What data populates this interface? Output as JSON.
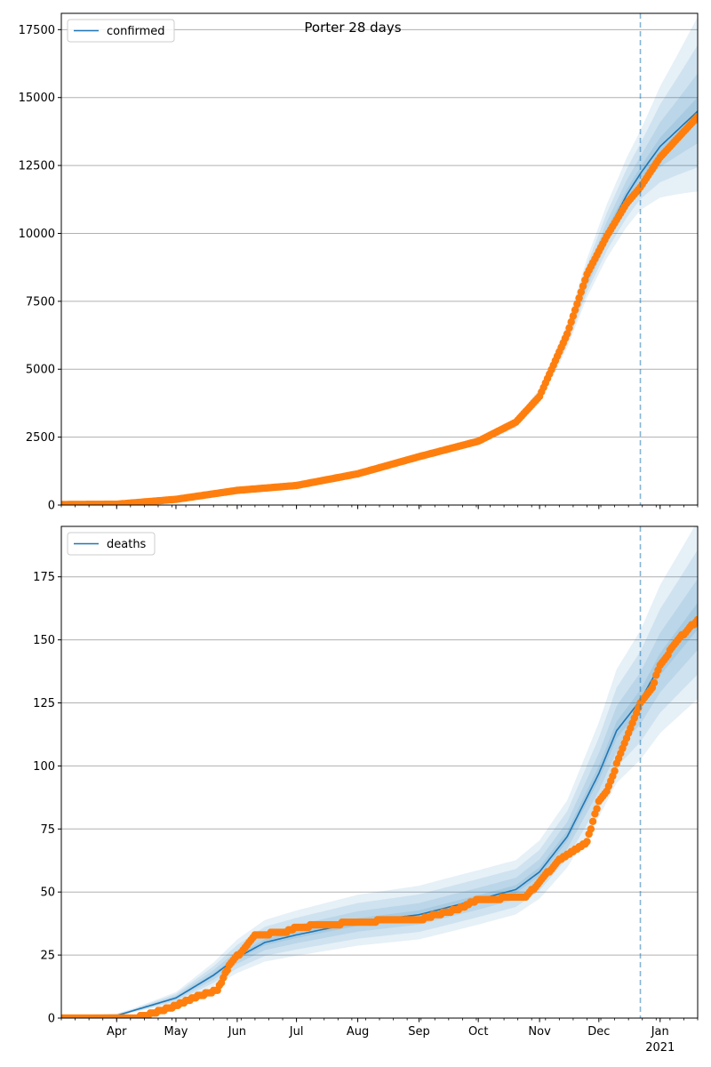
{
  "figure": {
    "title": "Porter 28 days"
  },
  "colors": {
    "model": "#1f77b4",
    "observed": "#ff7f0e",
    "band": "#1f77b4",
    "grid": "#b0b0b0",
    "forecast_line": "#1f77b4"
  },
  "x_axis": {
    "range": [
      "2020-03-04",
      "2021-01-20"
    ],
    "forecast_start": "2020-12-22",
    "month_ticks": [
      {
        "date": "2020-04-01",
        "label": "Apr"
      },
      {
        "date": "2020-05-01",
        "label": "May"
      },
      {
        "date": "2020-06-01",
        "label": "Jun"
      },
      {
        "date": "2020-07-01",
        "label": "Jul"
      },
      {
        "date": "2020-08-01",
        "label": "Aug"
      },
      {
        "date": "2020-09-01",
        "label": "Sep"
      },
      {
        "date": "2020-10-01",
        "label": "Oct"
      },
      {
        "date": "2020-11-01",
        "label": "Nov"
      },
      {
        "date": "2020-12-01",
        "label": "Dec"
      },
      {
        "date": "2021-01-01",
        "label": "Jan"
      }
    ],
    "year_label": "2021"
  },
  "chart_data": [
    {
      "type": "line",
      "legend": "confirmed",
      "legend_position": "upper-left",
      "grid": "horizontal",
      "ylim": [
        0,
        18100
      ],
      "y_ticks": [
        0,
        2500,
        5000,
        7500,
        10000,
        12500,
        15000,
        17500
      ],
      "model_knots": [
        [
          "2020-03-04",
          20
        ],
        [
          "2020-04-01",
          40
        ],
        [
          "2020-05-01",
          200
        ],
        [
          "2020-06-01",
          520
        ],
        [
          "2020-07-01",
          700
        ],
        [
          "2020-08-01",
          1150
        ],
        [
          "2020-09-01",
          1750
        ],
        [
          "2020-10-01",
          2300
        ],
        [
          "2020-10-20",
          3000
        ],
        [
          "2020-11-01",
          4000
        ],
        [
          "2020-11-15",
          6200
        ],
        [
          "2020-11-25",
          8300
        ],
        [
          "2020-12-05",
          10000
        ],
        [
          "2020-12-15",
          11400
        ],
        [
          "2020-12-22",
          12200
        ],
        [
          "2021-01-01",
          13200
        ],
        [
          "2021-01-20",
          14500
        ]
      ],
      "band_spread": [
        [
          "2020-03-04",
          0.06
        ],
        [
          "2020-10-01",
          0.05
        ],
        [
          "2020-11-15",
          0.08
        ],
        [
          "2020-12-22",
          0.13
        ],
        [
          "2021-01-20",
          0.24
        ]
      ],
      "observed_knots": [
        [
          "2020-03-04",
          20
        ],
        [
          "2020-04-01",
          30
        ],
        [
          "2020-05-01",
          210
        ],
        [
          "2020-06-01",
          540
        ],
        [
          "2020-07-01",
          720
        ],
        [
          "2020-08-01",
          1150
        ],
        [
          "2020-09-01",
          1780
        ],
        [
          "2020-10-01",
          2350
        ],
        [
          "2020-10-20",
          3050
        ],
        [
          "2020-11-01",
          4000
        ],
        [
          "2020-11-15",
          6300
        ],
        [
          "2020-11-25",
          8500
        ],
        [
          "2020-12-05",
          9900
        ],
        [
          "2020-12-15",
          11100
        ],
        [
          "2020-12-22",
          11700
        ],
        [
          "2021-01-01",
          12800
        ],
        [
          "2021-01-20",
          14300
        ]
      ]
    },
    {
      "type": "line",
      "legend": "deaths",
      "legend_position": "upper-left",
      "grid": "horizontal",
      "ylim": [
        0,
        195
      ],
      "y_ticks": [
        0,
        25,
        50,
        75,
        100,
        125,
        150,
        175
      ],
      "model_knots": [
        [
          "2020-03-04",
          0
        ],
        [
          "2020-04-01",
          1
        ],
        [
          "2020-05-01",
          8
        ],
        [
          "2020-05-20",
          17
        ],
        [
          "2020-06-01",
          24
        ],
        [
          "2020-06-15",
          30
        ],
        [
          "2020-07-01",
          33
        ],
        [
          "2020-08-01",
          38
        ],
        [
          "2020-09-01",
          41
        ],
        [
          "2020-10-01",
          47
        ],
        [
          "2020-10-20",
          51
        ],
        [
          "2020-11-01",
          58
        ],
        [
          "2020-11-15",
          72
        ],
        [
          "2020-12-01",
          97
        ],
        [
          "2020-12-10",
          114
        ],
        [
          "2020-12-22",
          126
        ],
        [
          "2021-01-01",
          140
        ],
        [
          "2021-01-20",
          159
        ]
      ],
      "band_spread": [
        [
          "2020-03-04",
          0.28
        ],
        [
          "2020-06-01",
          0.3
        ],
        [
          "2020-09-01",
          0.28
        ],
        [
          "2020-11-15",
          0.2
        ],
        [
          "2020-12-22",
          0.22
        ],
        [
          "2021-01-20",
          0.24
        ]
      ],
      "observed_knots": [
        [
          "2020-03-04",
          0
        ],
        [
          "2020-04-10",
          0
        ],
        [
          "2020-04-20",
          2
        ],
        [
          "2020-05-01",
          5
        ],
        [
          "2020-05-10",
          8
        ],
        [
          "2020-05-22",
          11
        ],
        [
          "2020-05-28",
          21
        ],
        [
          "2020-06-05",
          28
        ],
        [
          "2020-06-10",
          33
        ],
        [
          "2020-06-25",
          34
        ],
        [
          "2020-07-01",
          36
        ],
        [
          "2020-07-15",
          37
        ],
        [
          "2020-08-01",
          38
        ],
        [
          "2020-08-20",
          39
        ],
        [
          "2020-09-01",
          39
        ],
        [
          "2020-09-10",
          41
        ],
        [
          "2020-09-20",
          43
        ],
        [
          "2020-10-01",
          47
        ],
        [
          "2020-10-25",
          48
        ],
        [
          "2020-11-01",
          54
        ],
        [
          "2020-11-10",
          62
        ],
        [
          "2020-11-25",
          70
        ],
        [
          "2020-12-01",
          86
        ],
        [
          "2020-12-05",
          90
        ],
        [
          "2020-12-08",
          96
        ],
        [
          "2020-12-12",
          105
        ],
        [
          "2020-12-22",
          125
        ],
        [
          "2020-12-28",
          131
        ],
        [
          "2021-01-01",
          140
        ],
        [
          "2021-01-10",
          150
        ],
        [
          "2021-01-20",
          158
        ]
      ]
    }
  ]
}
